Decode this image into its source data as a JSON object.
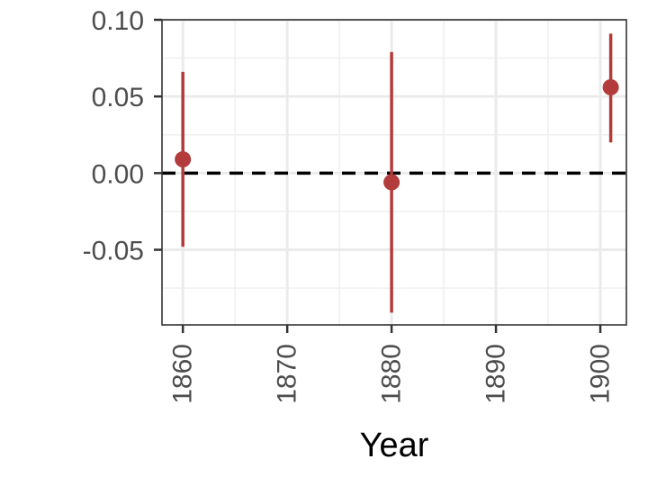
{
  "chart_data": {
    "type": "scatter",
    "subtype": "point-range",
    "title": "",
    "xlabel": "Year",
    "ylabel": "",
    "xlim": [
      1858,
      1902.5
    ],
    "ylim": [
      -0.099,
      0.1
    ],
    "x_ticks": [
      1860,
      1870,
      1880,
      1890,
      1900
    ],
    "x_tick_labels": [
      "1860",
      "1870",
      "1880",
      "1890",
      "1900"
    ],
    "y_ticks": [
      0.1,
      0.05,
      0.0,
      -0.05
    ],
    "y_tick_labels": [
      "0.10",
      "0.05",
      "0.00",
      "-0.05"
    ],
    "grid": true,
    "reference_line": {
      "y": 0.0,
      "style": "dashed",
      "color": "#000000"
    },
    "series": [
      {
        "color": "#b33b3b",
        "points": [
          {
            "x": 1860,
            "y": 0.009,
            "lower": -0.048,
            "upper": 0.066
          },
          {
            "x": 1880,
            "y": -0.006,
            "lower": -0.091,
            "upper": 0.079
          },
          {
            "x": 1901,
            "y": 0.056,
            "lower": 0.02,
            "upper": 0.091
          }
        ]
      }
    ]
  }
}
